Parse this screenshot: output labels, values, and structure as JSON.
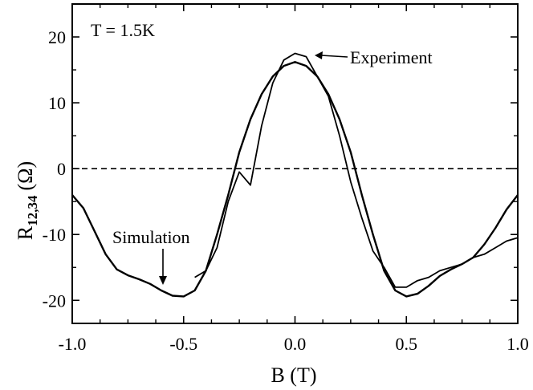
{
  "chart_data": {
    "type": "line",
    "xlabel": "B (T)",
    "ylabel_main": "R",
    "ylabel_sub": "12,34",
    "ylabel_unit": "(Ω)",
    "xlim": [
      -1.0,
      1.0
    ],
    "ylim": [
      -23.5,
      25.0
    ],
    "xticks": [
      -1.0,
      -0.5,
      0.0,
      0.5,
      1.0
    ],
    "xtick_labels": [
      "-1.0",
      "-0.5",
      "0.0",
      "0.5",
      "1.0"
    ],
    "yticks": [
      -20,
      -10,
      0,
      10,
      20
    ],
    "ytick_labels": [
      "-20",
      "-10",
      "0",
      "10",
      "20"
    ],
    "grid": false,
    "zero_line": {
      "y": 0,
      "style": "dashed"
    },
    "annotations": {
      "temperature": "T = 1.5K",
      "experiment_label": "Experiment",
      "simulation_label": "Simulation"
    },
    "series": [
      {
        "name": "Simulation",
        "x": [
          -1.0,
          -0.95,
          -0.9,
          -0.85,
          -0.8,
          -0.75,
          -0.7,
          -0.65,
          -0.6,
          -0.55,
          -0.5,
          -0.45,
          -0.4,
          -0.35,
          -0.3,
          -0.25,
          -0.2,
          -0.15,
          -0.1,
          -0.05,
          0.0,
          0.05,
          0.1,
          0.15,
          0.2,
          0.25,
          0.3,
          0.35,
          0.4,
          0.45,
          0.5,
          0.55,
          0.6,
          0.65,
          0.7,
          0.75,
          0.8,
          0.85,
          0.9,
          0.95,
          1.0
        ],
        "y": [
          -4,
          -6,
          -9.5,
          -13,
          -15.3,
          -16.2,
          -16.8,
          -17.5,
          -18.5,
          -19.3,
          -19.4,
          -18.5,
          -15.5,
          -10,
          -4,
          2.5,
          7.5,
          11.3,
          14,
          15.6,
          16.2,
          15.6,
          14,
          11.3,
          7.5,
          2.5,
          -4,
          -10,
          -15.5,
          -18.5,
          -19.4,
          -19,
          -17.8,
          -16.3,
          -15.3,
          -14.5,
          -13.5,
          -11.5,
          -9,
          -6.2,
          -4
        ]
      },
      {
        "name": "Experiment",
        "x": [
          -0.45,
          -0.4,
          -0.35,
          -0.3,
          -0.25,
          -0.2,
          -0.15,
          -0.1,
          -0.05,
          0.0,
          0.05,
          0.1,
          0.15,
          0.2,
          0.25,
          0.3,
          0.35,
          0.4,
          0.45,
          0.5,
          0.55,
          0.6,
          0.65,
          0.7,
          0.75,
          0.8,
          0.85,
          0.9,
          0.95,
          1.0
        ],
        "y": [
          -16.5,
          -15.5,
          -12,
          -5,
          -0.5,
          -2.5,
          6.5,
          13,
          16.5,
          17.5,
          17,
          14,
          11,
          5,
          -2,
          -7.5,
          -12.5,
          -15,
          -18,
          -18,
          -17,
          -16.5,
          -15.5,
          -15,
          -14.5,
          -13.5,
          -13,
          -12,
          -11,
          -10.5
        ]
      }
    ]
  }
}
